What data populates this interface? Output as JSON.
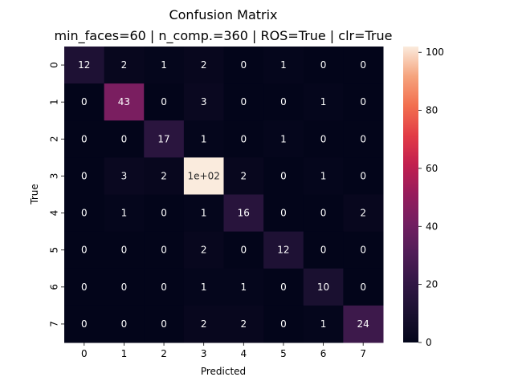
{
  "chart_data": {
    "type": "heatmap",
    "title": "Confusion Matrix",
    "subtitle": "min_faces=60 | n_comp.=360 | ROS=True | clr=True",
    "xlabel": "Predicted",
    "ylabel": "True",
    "x_categories": [
      "0",
      "1",
      "2",
      "3",
      "4",
      "5",
      "6",
      "7"
    ],
    "y_categories": [
      "0",
      "1",
      "2",
      "3",
      "4",
      "5",
      "6",
      "7"
    ],
    "values": [
      [
        12,
        2,
        1,
        2,
        0,
        1,
        0,
        0
      ],
      [
        0,
        43,
        0,
        3,
        0,
        0,
        1,
        0
      ],
      [
        0,
        0,
        17,
        1,
        0,
        1,
        0,
        0
      ],
      [
        0,
        3,
        2,
        102,
        2,
        0,
        1,
        0
      ],
      [
        0,
        1,
        0,
        1,
        16,
        0,
        0,
        2
      ],
      [
        0,
        0,
        0,
        2,
        0,
        12,
        0,
        0
      ],
      [
        0,
        0,
        0,
        1,
        1,
        0,
        10,
        0
      ],
      [
        0,
        0,
        0,
        2,
        2,
        0,
        1,
        24
      ]
    ],
    "cell_labels": [
      [
        "12",
        "2",
        "1",
        "2",
        "0",
        "1",
        "0",
        "0"
      ],
      [
        "0",
        "43",
        "0",
        "3",
        "0",
        "0",
        "1",
        "0"
      ],
      [
        "0",
        "0",
        "17",
        "1",
        "0",
        "1",
        "0",
        "0"
      ],
      [
        "0",
        "3",
        "2",
        "1e+02",
        "2",
        "0",
        "1",
        "0"
      ],
      [
        "0",
        "1",
        "0",
        "1",
        "16",
        "0",
        "0",
        "2"
      ],
      [
        "0",
        "0",
        "0",
        "2",
        "0",
        "12",
        "0",
        "0"
      ],
      [
        "0",
        "0",
        "0",
        "1",
        "1",
        "0",
        "10",
        "0"
      ],
      [
        "0",
        "0",
        "0",
        "2",
        "2",
        "0",
        "1",
        "24"
      ]
    ],
    "colorbar": {
      "min": 0,
      "max": 102,
      "ticks": [
        0,
        20,
        40,
        60,
        80,
        100
      ],
      "colormap": "rocket"
    },
    "grid": false,
    "legend": "colorbar-right"
  }
}
